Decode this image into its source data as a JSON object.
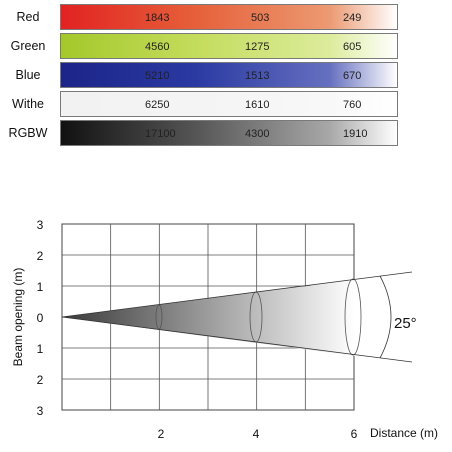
{
  "table": {
    "rows": [
      {
        "label": "Red",
        "values": [
          "1843",
          "503",
          "249"
        ],
        "gradient": [
          "#e22222",
          "#e6603a",
          "#ec9a72",
          "#ffffff"
        ]
      },
      {
        "label": "Green",
        "values": [
          "4560",
          "1275",
          "605"
        ],
        "gradient": [
          "#a4c82a",
          "#c4dc5c",
          "#dcec9c",
          "#ffffff"
        ]
      },
      {
        "label": "Blue",
        "values": [
          "5210",
          "1513",
          "670"
        ],
        "gradient": [
          "#1c2488",
          "#2a3aa2",
          "#6670c0",
          "#ffffff"
        ]
      },
      {
        "label": "Withe",
        "values": [
          "6250",
          "1610",
          "760"
        ],
        "gradient": [
          "#f2f2f2",
          "#f4f4f4",
          "#f8f8f8",
          "#ffffff"
        ]
      },
      {
        "label": "RGBW",
        "values": [
          "17100",
          "4300",
          "1910"
        ],
        "gradient": [
          "#111111",
          "#555555",
          "#a8a8a8",
          "#ffffff"
        ]
      }
    ]
  },
  "beam": {
    "y_label": "Beam opening (m)",
    "x_label": "Distance (m)",
    "y_ticks": [
      "3",
      "2",
      "1",
      "0",
      "1",
      "2",
      "3"
    ],
    "x_ticks": [
      "2",
      "4",
      "6"
    ],
    "angle_label": "25°",
    "beam_angle_deg": 25,
    "max_distance_m": 6,
    "grid_columns": 6,
    "grid_rows": 6,
    "beam_gradient": [
      "#3a3a3a",
      "#ffffff"
    ]
  }
}
